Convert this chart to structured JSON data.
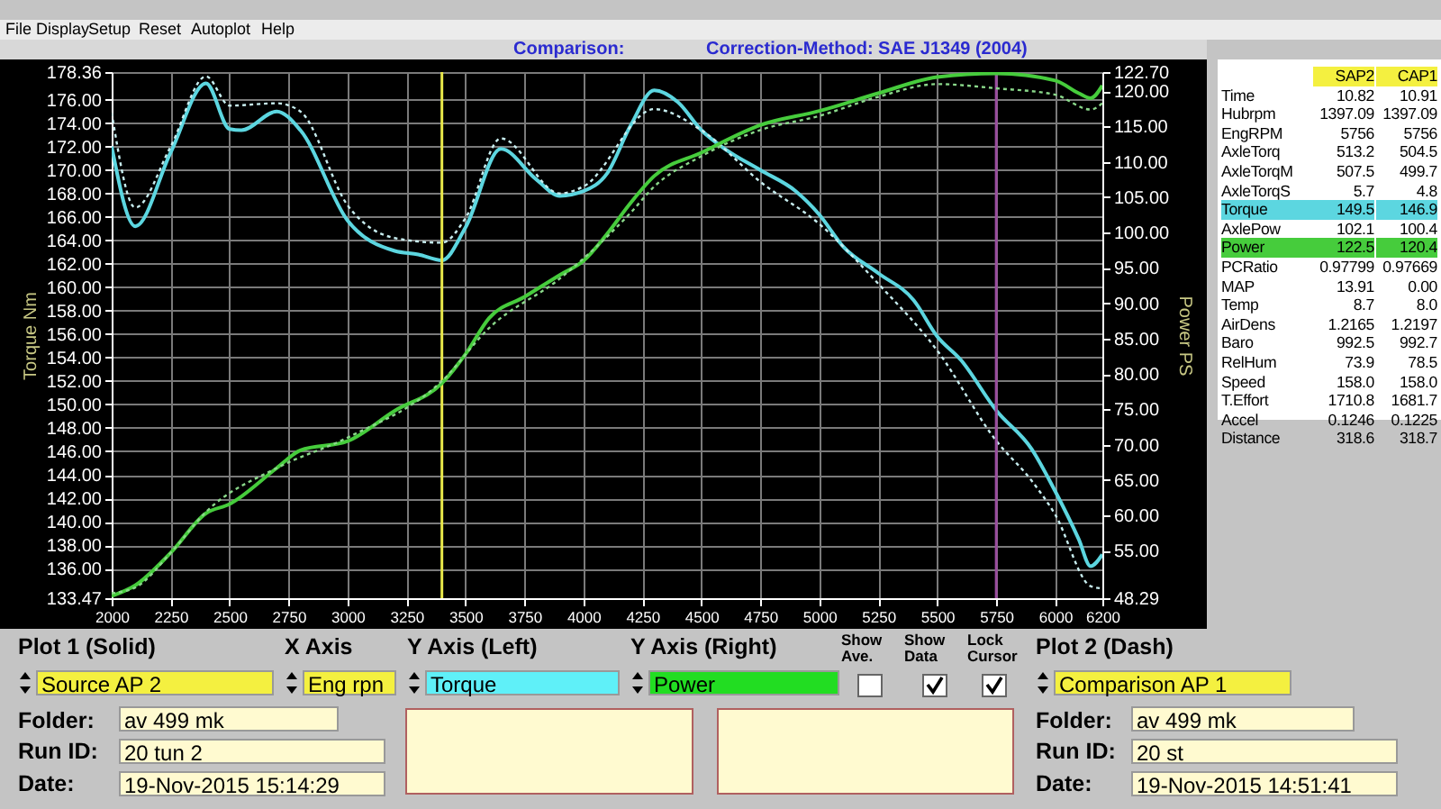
{
  "chart_data": [
    {
      "type": "line",
      "title": "Comparison:",
      "subtitle": "Correction-Method: SAE J1349 (2004)",
      "ylabel": "Torque Nm",
      "y2label": "Power PS",
      "grid": true,
      "xlim": [
        2000,
        6200
      ],
      "xticks": [
        2000,
        2250,
        2500,
        2750,
        3000,
        3250,
        3500,
        3750,
        4000,
        4250,
        4500,
        4750,
        5000,
        5250,
        5500,
        5750,
        6000,
        6200
      ],
      "ylim": [
        133.47,
        178.36
      ],
      "yticks": [
        {
          "value": 133.47,
          "label": "133.47"
        },
        {
          "value": 136,
          "label": "136.00"
        },
        {
          "value": 138,
          "label": "138.00"
        },
        {
          "value": 140,
          "label": "140.00"
        },
        {
          "value": 142,
          "label": "142.00"
        },
        {
          "value": 144,
          "label": "144.00"
        },
        {
          "value": 146,
          "label": "146.00"
        },
        {
          "value": 148,
          "label": "148.00"
        },
        {
          "value": 150,
          "label": "150.00"
        },
        {
          "value": 152,
          "label": "152.00"
        },
        {
          "value": 154,
          "label": "154.00"
        },
        {
          "value": 156,
          "label": "156.00"
        },
        {
          "value": 158,
          "label": "158.00"
        },
        {
          "value": 160,
          "label": "160.00"
        },
        {
          "value": 162,
          "label": "162.00"
        },
        {
          "value": 164,
          "label": "164.00"
        },
        {
          "value": 166,
          "label": "166.00"
        },
        {
          "value": 168,
          "label": "168.00"
        },
        {
          "value": 170,
          "label": "170.00"
        },
        {
          "value": 172,
          "label": "172.00"
        },
        {
          "value": 174,
          "label": "174.00"
        },
        {
          "value": 176,
          "label": "176.00"
        },
        {
          "value": 178.36,
          "label": "178.36"
        }
      ],
      "y2lim": [
        48.29,
        122.7
      ],
      "y2ticks": [
        {
          "value": 48.29,
          "label": "48.29"
        },
        {
          "value": 55,
          "label": "55.00"
        },
        {
          "value": 60,
          "label": "60.00"
        },
        {
          "value": 65,
          "label": "65.00"
        },
        {
          "value": 70,
          "label": "70.00"
        },
        {
          "value": 75,
          "label": "75.00"
        },
        {
          "value": 80,
          "label": "80.00"
        },
        {
          "value": 85,
          "label": "85.00"
        },
        {
          "value": 90,
          "label": "90.00"
        },
        {
          "value": 95,
          "label": "95.00"
        },
        {
          "value": 100,
          "label": "100.00"
        },
        {
          "value": 105,
          "label": "105.00"
        },
        {
          "value": 110,
          "label": "110.00"
        },
        {
          "value": 115,
          "label": "115.00"
        },
        {
          "value": 120,
          "label": "120.00"
        },
        {
          "value": 122.7,
          "label": "122.70"
        }
      ],
      "ref_lines": [
        {
          "axis": "x",
          "value": 3400,
          "color": "#e8e84a"
        },
        {
          "axis": "x",
          "value": 5750,
          "color": "#9a4c9e"
        }
      ],
      "series": [
        {
          "color": "#5cd6e0",
          "line_style": "solid",
          "x": [
            2000,
            2100,
            2250,
            2400,
            2500,
            2550,
            2700,
            2800,
            3000,
            3200,
            3300,
            3400,
            3500,
            3650,
            3800,
            3900,
            4000,
            4100,
            4200,
            4300,
            4400,
            4500,
            4600,
            4750,
            4900,
            5000,
            5100,
            5250,
            5400,
            5500,
            5600,
            5750,
            5900,
            6000,
            6100,
            6150,
            6200
          ],
          "values": [
            172.0,
            165.2,
            171.5,
            177.4,
            173.5,
            173.4,
            175.0,
            173.4,
            165.7,
            163.1,
            162.8,
            162.3,
            165.1,
            171.8,
            169.2,
            167.8,
            168.2,
            169.7,
            173.8,
            176.8,
            175.8,
            173.4,
            171.8,
            170.0,
            168.2,
            166.2,
            163.5,
            161.2,
            158.9,
            155.8,
            153.8,
            149.5,
            146.2,
            142.6,
            138.5,
            136.2,
            137.2
          ]
        },
        {
          "color": "#c8eef0",
          "line_style": "dotted",
          "x": [
            2000,
            2100,
            2250,
            2400,
            2500,
            2700,
            2800,
            3000,
            3200,
            3400,
            3500,
            3650,
            3900,
            4000,
            4300,
            4500,
            4750,
            5000,
            5250,
            5500,
            5750,
            5900,
            6000,
            6150,
            6200
          ],
          "values": [
            174.9,
            166.8,
            172.0,
            178.0,
            175.5,
            175.7,
            175.0,
            167.0,
            164.2,
            163.8,
            165.9,
            172.7,
            168.0,
            168.6,
            175.2,
            173.4,
            169.0,
            165.4,
            160.3,
            154.6,
            146.9,
            143.5,
            140.6,
            134.5,
            134.3
          ]
        },
        {
          "color": "#46cc3c",
          "line_style": "solid",
          "axis": "y2",
          "x": [
            2000,
            2100,
            2250,
            2400,
            2500,
            2700,
            2800,
            3000,
            3200,
            3400,
            3500,
            3600,
            3750,
            3900,
            4000,
            4100,
            4200,
            4300,
            4500,
            4750,
            5000,
            5250,
            5500,
            5750,
            6000,
            6100,
            6150,
            6200
          ],
          "values": [
            48.6,
            50.1,
            54.7,
            60.3,
            61.6,
            66.7,
            69.2,
            70.5,
            74.8,
            78.7,
            82.8,
            87.9,
            90.9,
            94.0,
            96.0,
            99.8,
            104.2,
            108.0,
            111.3,
            115.2,
            117.2,
            119.7,
            122.0,
            122.5,
            121.5,
            119.7,
            119.0,
            120.8
          ]
        },
        {
          "color": "#8ad88a",
          "line_style": "dotted",
          "axis": "y2",
          "x": [
            2000,
            2100,
            2250,
            2400,
            2700,
            3000,
            3400,
            3600,
            3900,
            4200,
            4300,
            4500,
            4750,
            5000,
            5250,
            5500,
            5750,
            6000,
            6150,
            6200
          ],
          "values": [
            49.0,
            49.8,
            54.7,
            60.5,
            66.7,
            71.0,
            79.0,
            86.5,
            93.5,
            102.8,
            106.5,
            110.8,
            114.5,
            116.5,
            119.2,
            121.0,
            120.4,
            119.5,
            117.4,
            118.3
          ]
        }
      ]
    },
    {
      "type": "other",
      "annotations": [
        "File",
        "Display",
        "Setup",
        "Reset",
        "Autoplot",
        "Help"
      ]
    },
    {
      "type": "other",
      "annotations": [
        "SAP2",
        "CAP1",
        "Time",
        "10.82",
        "10.91",
        "Hubrpm",
        "1397.09",
        "1397.09",
        "EngRPM",
        "5756",
        "5756",
        "AxleTorq",
        "513.2",
        "504.5",
        "AxleTorqM",
        "507.5",
        "499.7",
        "AxleTorqS",
        "5.7",
        "4.8",
        "Torque",
        "149.5",
        "146.9",
        "AxlePow",
        "102.1",
        "100.4",
        "Power",
        "122.5",
        "120.4",
        "PCRatio",
        "0.97799",
        "0.97669",
        "MAP",
        "13.91",
        "0.00",
        "Temp",
        "8.7",
        "8.0",
        "AirDens",
        "1.2165",
        "1.2197",
        "Baro",
        "992.5",
        "992.7",
        "RelHum",
        "73.9",
        "78.5",
        "Speed",
        "158.0",
        "158.0",
        "T.Effort",
        "1710.8",
        "1681.7",
        "Accel",
        "0.1246",
        "0.1225",
        "Distance",
        "318.6",
        "318.7"
      ]
    },
    {
      "type": "other",
      "annotations": [
        "Plot 1 (Solid)",
        "X Axis",
        "Y Axis (Left)",
        "Y Axis (Right)",
        "Show Ave.",
        "Show Data",
        "Lock Cursor",
        "Plot 2 (Dash)",
        "Source AP 2",
        "Eng rpn",
        "Torque",
        "Power",
        "Comparison AP 1",
        "Folder:",
        "av 499 mk",
        "Run ID:",
        "20 tun 2",
        "Date:",
        "19-Nov-2015  15:14:29",
        "Folder:",
        "av 499 mk",
        "Run ID:",
        "20 st",
        "Date:",
        "19-Nov-2015  14:51:41"
      ]
    }
  ]
}
